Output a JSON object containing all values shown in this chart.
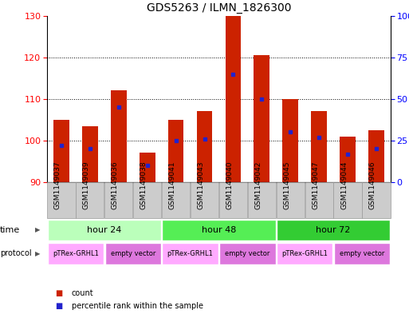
{
  "title": "GDS5263 / ILMN_1826300",
  "samples": [
    "GSM1149037",
    "GSM1149039",
    "GSM1149036",
    "GSM1149038",
    "GSM1149041",
    "GSM1149043",
    "GSM1149040",
    "GSM1149042",
    "GSM1149045",
    "GSM1149047",
    "GSM1149044",
    "GSM1149046"
  ],
  "counts": [
    105,
    103.5,
    112,
    97,
    105,
    107,
    130,
    120.5,
    110,
    107,
    101,
    102.5
  ],
  "percentile_ranks": [
    22,
    20,
    45,
    10,
    25,
    26,
    65,
    50,
    30,
    27,
    17,
    20
  ],
  "ylim_left": [
    90,
    130
  ],
  "ylim_right": [
    0,
    100
  ],
  "yticks_left": [
    90,
    100,
    110,
    120,
    130
  ],
  "yticks_right": [
    0,
    25,
    50,
    75,
    100
  ],
  "bar_color": "#cc2200",
  "dot_color": "#2222cc",
  "bar_bottom": 90,
  "time_groups": [
    {
      "label": "hour 24",
      "start": 0,
      "end": 4,
      "color": "#bbffbb"
    },
    {
      "label": "hour 48",
      "start": 4,
      "end": 8,
      "color": "#55ee55"
    },
    {
      "label": "hour 72",
      "start": 8,
      "end": 12,
      "color": "#33cc33"
    }
  ],
  "protocol_groups": [
    {
      "label": "pTRex-GRHL1",
      "start": 0,
      "end": 2,
      "color": "#ffaaff"
    },
    {
      "label": "empty vector",
      "start": 2,
      "end": 4,
      "color": "#dd77dd"
    },
    {
      "label": "pTRex-GRHL1",
      "start": 4,
      "end": 6,
      "color": "#ffaaff"
    },
    {
      "label": "empty vector",
      "start": 6,
      "end": 8,
      "color": "#dd77dd"
    },
    {
      "label": "pTRex-GRHL1",
      "start": 8,
      "end": 10,
      "color": "#ffaaff"
    },
    {
      "label": "empty vector",
      "start": 10,
      "end": 12,
      "color": "#dd77dd"
    }
  ],
  "legend_count_color": "#cc2200",
  "legend_dot_color": "#2222cc",
  "title_fontsize": 10,
  "tick_fontsize": 7,
  "label_fontsize": 8,
  "sample_box_color": "#cccccc",
  "sample_box_edge": "#999999"
}
